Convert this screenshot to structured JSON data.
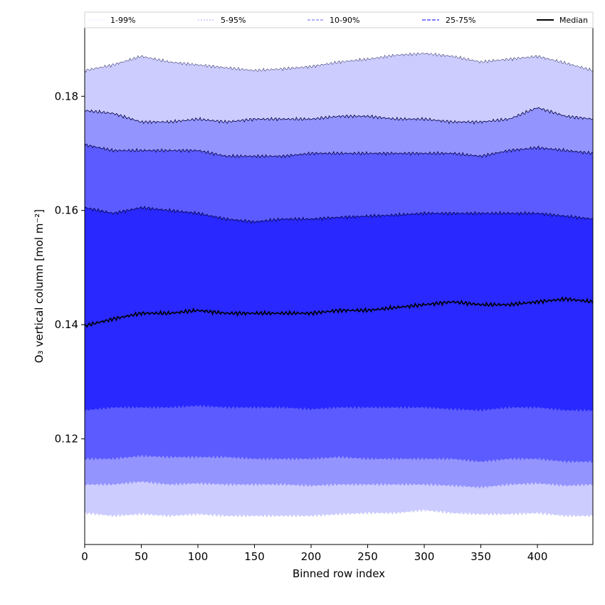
{
  "chart_data": {
    "type": "area",
    "xlabel": "Binned row index",
    "ylabel": "O₃ vertical column [mol m⁻²]",
    "xlim": [
      0,
      449
    ],
    "ylim": [
      0.1015,
      0.192
    ],
    "x_ticks": [
      0,
      50,
      100,
      150,
      200,
      250,
      300,
      350,
      400
    ],
    "y_ticks": [
      0.12,
      0.14,
      0.16,
      0.18
    ],
    "y_tick_labels": [
      "0.12",
      "0.14",
      "0.16",
      "0.18"
    ],
    "grid": false,
    "legend": {
      "position": "top",
      "entries": [
        "1-99%",
        "5-95%",
        "10-90%",
        "25-75%",
        "Median"
      ]
    },
    "colors": {
      "band_1_99": "#ccccff",
      "band_5_95": "#9494ff",
      "band_10_90": "#5b5bff",
      "band_25_75": "#2828ff",
      "median": "#000000",
      "legend_1_99": "#e0e0ff",
      "legend_5_95": "#aaaaff",
      "legend_10_90": "#8080ff",
      "legend_25_75": "#5555ff"
    },
    "x": [
      0,
      25,
      50,
      75,
      100,
      125,
      150,
      175,
      200,
      225,
      250,
      275,
      300,
      325,
      350,
      375,
      400,
      425,
      449
    ],
    "series": [
      {
        "name": "Median",
        "values": [
          0.1398,
          0.141,
          0.142,
          0.142,
          0.1425,
          0.142,
          0.142,
          0.142,
          0.142,
          0.1425,
          0.1425,
          0.143,
          0.1435,
          0.144,
          0.1435,
          0.1435,
          0.144,
          0.1445,
          0.144
        ]
      },
      {
        "name": "25-75%",
        "lower": [
          0.125,
          0.1255,
          0.1255,
          0.1255,
          0.1258,
          0.1255,
          0.1255,
          0.1255,
          0.1252,
          0.1255,
          0.1255,
          0.1255,
          0.1255,
          0.1252,
          0.125,
          0.1255,
          0.1255,
          0.125,
          0.125
        ],
        "upper": [
          0.1605,
          0.1595,
          0.1605,
          0.16,
          0.1595,
          0.1585,
          0.158,
          0.1585,
          0.1585,
          0.1588,
          0.159,
          0.1592,
          0.1595,
          0.1595,
          0.1595,
          0.1595,
          0.1595,
          0.159,
          0.1585
        ]
      },
      {
        "name": "10-90%",
        "lower": [
          0.1165,
          0.1165,
          0.117,
          0.1168,
          0.1168,
          0.1168,
          0.1165,
          0.1165,
          0.1165,
          0.1168,
          0.1165,
          0.1165,
          0.1165,
          0.1165,
          0.116,
          0.1165,
          0.1165,
          0.116,
          0.116
        ],
        "upper": [
          0.1715,
          0.1705,
          0.1705,
          0.1705,
          0.1705,
          0.1695,
          0.1695,
          0.1695,
          0.17,
          0.17,
          0.17,
          0.17,
          0.17,
          0.17,
          0.1695,
          0.1705,
          0.171,
          0.1705,
          0.17
        ]
      },
      {
        "name": "5-95%",
        "lower": [
          0.112,
          0.112,
          0.1125,
          0.112,
          0.1122,
          0.112,
          0.112,
          0.112,
          0.1118,
          0.112,
          0.112,
          0.112,
          0.112,
          0.1118,
          0.1115,
          0.112,
          0.1122,
          0.1118,
          0.112
        ],
        "upper": [
          0.1775,
          0.177,
          0.1755,
          0.1755,
          0.176,
          0.1755,
          0.176,
          0.176,
          0.176,
          0.1765,
          0.1765,
          0.176,
          0.176,
          0.1755,
          0.1755,
          0.176,
          0.178,
          0.1765,
          0.176
        ]
      },
      {
        "name": "1-99%",
        "lower": [
          0.107,
          0.1065,
          0.1068,
          0.1065,
          0.1068,
          0.1065,
          0.1065,
          0.1065,
          0.1065,
          0.1068,
          0.107,
          0.107,
          0.1075,
          0.107,
          0.1068,
          0.1068,
          0.107,
          0.1065,
          0.1065
        ],
        "upper": [
          0.1845,
          0.1855,
          0.187,
          0.186,
          0.1855,
          0.185,
          0.1845,
          0.1848,
          0.1852,
          0.186,
          0.1865,
          0.1872,
          0.1875,
          0.187,
          0.186,
          0.1865,
          0.187,
          0.1858,
          0.1845
        ]
      }
    ]
  }
}
